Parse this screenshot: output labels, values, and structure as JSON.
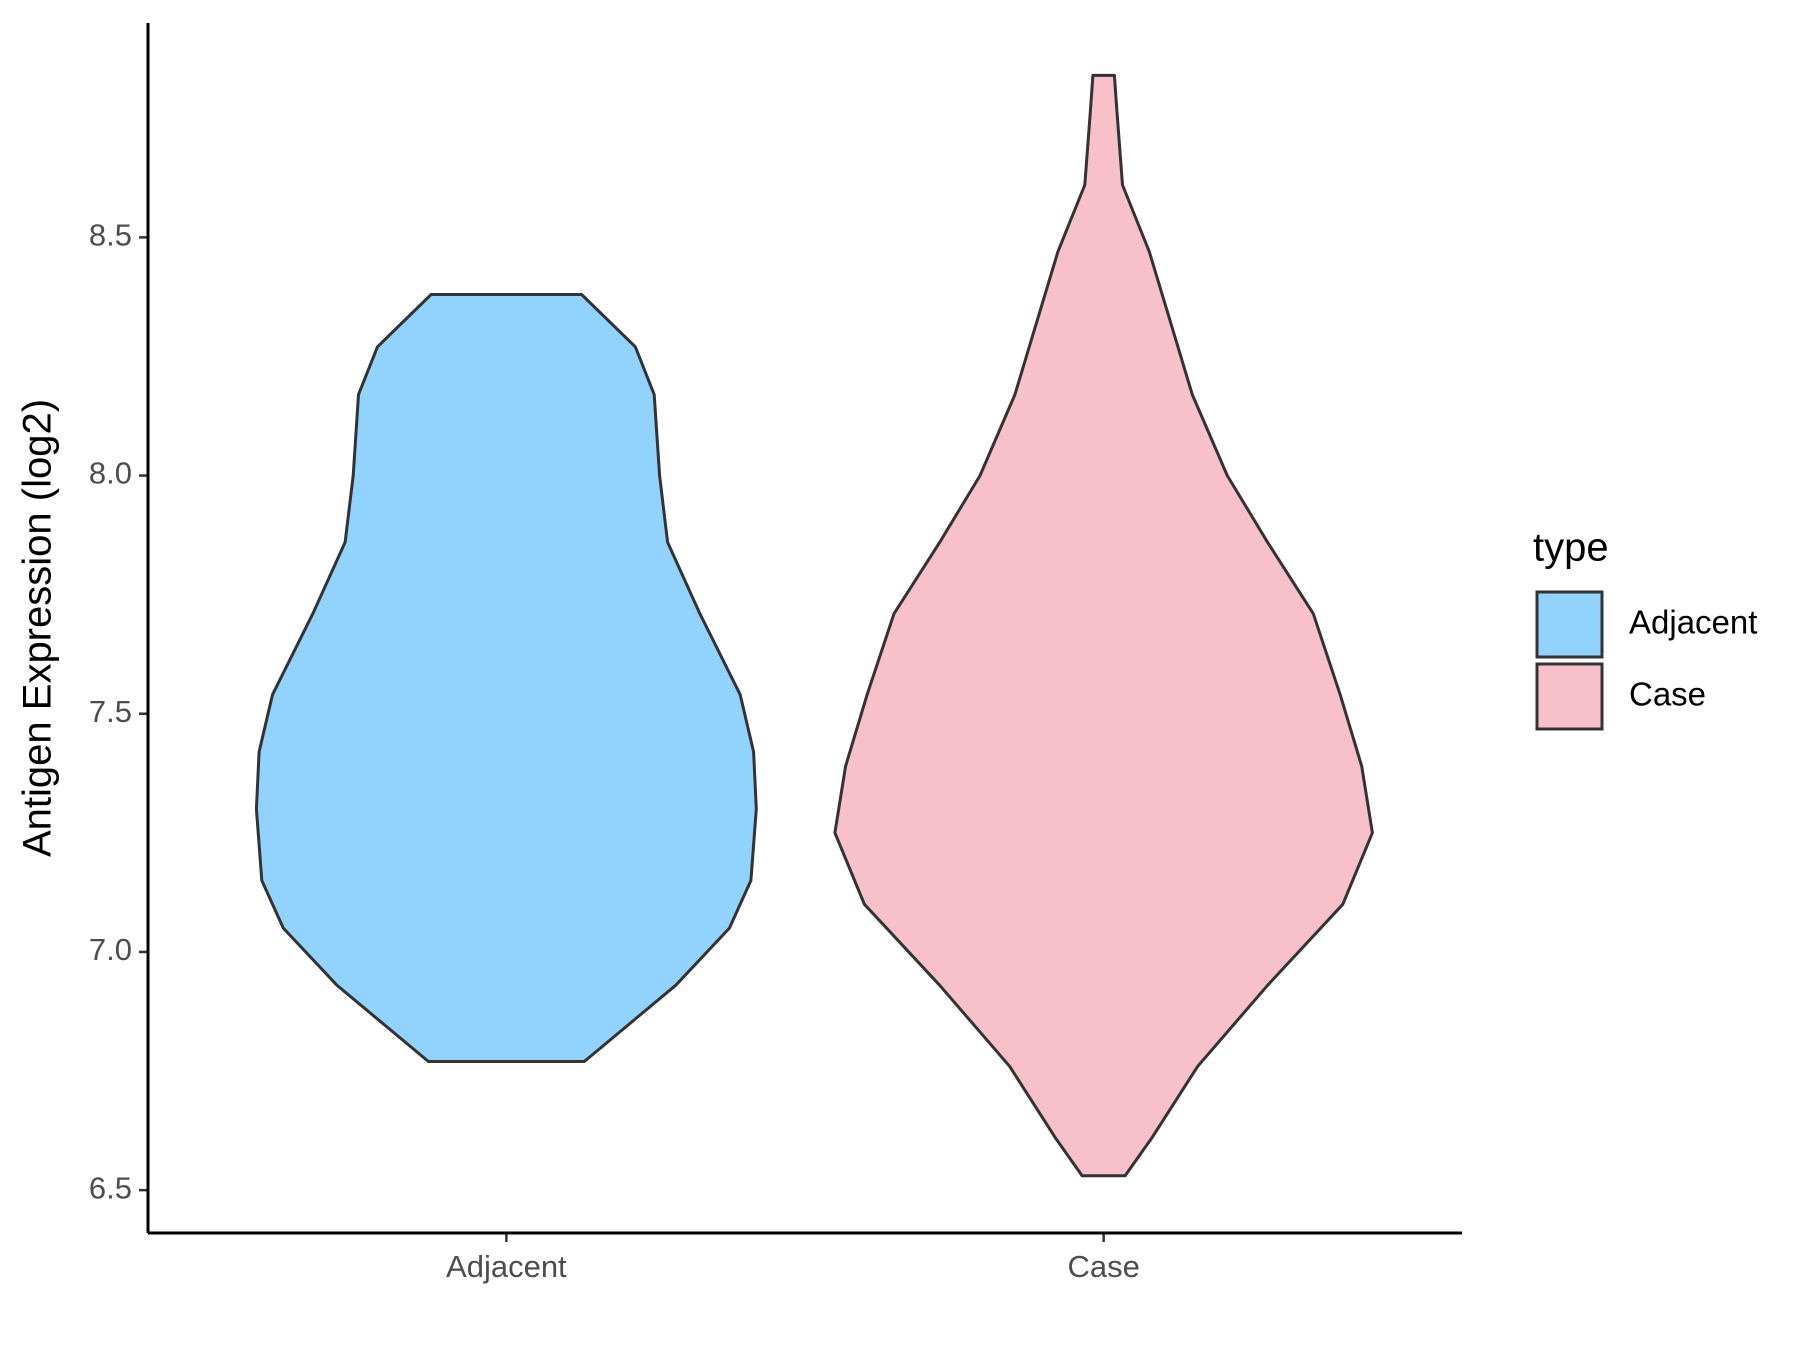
{
  "chart_data": {
    "type": "violin",
    "y_label": "Antigen Expression (log2)",
    "categories": [
      "Adjacent",
      "Case"
    ],
    "legend_title": "type",
    "ylim": [
      6.41,
      8.95
    ],
    "yticks": [
      6.5,
      {
        "value": 7,
        "label": "7.0"
      },
      7.5,
      {
        "value": 8,
        "label": "8.0"
      },
      8.5
    ],
    "series": [
      {
        "name": "Adjacent",
        "color": "#92d3fe",
        "y": [
          8.38,
          8.27,
          8.17,
          8.0,
          7.86,
          7.71,
          7.54,
          7.42,
          7.3,
          7.15,
          7.05,
          6.93,
          6.77
        ],
        "density": [
          0.28,
          0.48,
          0.55,
          0.57,
          0.6,
          0.72,
          0.87,
          0.92,
          0.93,
          0.91,
          0.83,
          0.63,
          0.29
        ]
      },
      {
        "name": "Case",
        "color": "#f7c0cb",
        "y": [
          8.84,
          8.76,
          8.61,
          8.47,
          8.32,
          8.17,
          8.0,
          7.86,
          7.71,
          7.54,
          7.39,
          7.25,
          7.1,
          6.93,
          6.76,
          6.61,
          6.53
        ],
        "density": [
          0.04,
          0.05,
          0.07,
          0.17,
          0.25,
          0.33,
          0.46,
          0.61,
          0.78,
          0.88,
          0.96,
          1.0,
          0.89,
          0.61,
          0.35,
          0.18,
          0.08
        ]
      }
    ]
  }
}
